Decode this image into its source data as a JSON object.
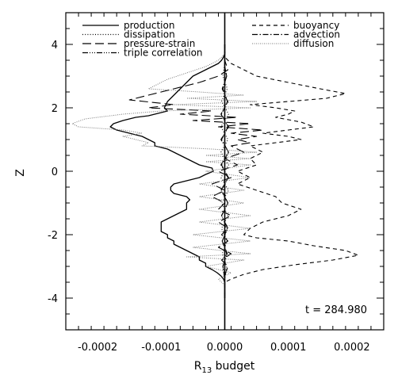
{
  "chart_data": {
    "type": "line",
    "title": "",
    "xlabel": "R",
    "xlabel_sub": "13",
    "xlabel_suffix": " budget",
    "ylabel": "Z",
    "xlim": [
      -0.00025,
      0.00025
    ],
    "ylim": [
      -5,
      5
    ],
    "x_ticks": [
      -0.0002,
      -0.0001,
      0.0,
      0.0001,
      0.0002
    ],
    "x_tick_labels": [
      "-0.0002",
      "-0.0001",
      "0.0000",
      "0.0001",
      "0.0002"
    ],
    "y_ticks": [
      -4,
      -2,
      0,
      2,
      4
    ],
    "y_tick_labels": [
      "-4",
      "-2",
      "0",
      "2",
      "4"
    ],
    "grid": false,
    "legend_placement": "top (two columns)",
    "annotation": "t = 284.980",
    "series": [
      {
        "name": "production",
        "style": "solid",
        "color": "#000000",
        "points": [
          [
            0.0,
            4.0
          ],
          [
            0.0,
            3.7
          ],
          [
            -2e-06,
            3.6
          ],
          [
            -5e-06,
            3.5
          ],
          [
            -1e-05,
            3.4
          ],
          [
            -2e-05,
            3.3
          ],
          [
            -3e-05,
            3.2
          ],
          [
            -4e-05,
            3.1
          ],
          [
            -5e-05,
            3.0
          ],
          [
            -6e-05,
            2.8
          ],
          [
            -7e-05,
            2.6
          ],
          [
            -8e-05,
            2.4
          ],
          [
            -9e-05,
            2.2
          ],
          [
            -9.5e-05,
            2.0
          ],
          [
            -9e-05,
            1.9
          ],
          [
            -0.0001,
            1.85
          ],
          [
            -0.00012,
            1.75
          ],
          [
            -0.00014,
            1.7
          ],
          [
            -0.00016,
            1.6
          ],
          [
            -0.000175,
            1.5
          ],
          [
            -0.00018,
            1.4
          ],
          [
            -0.00017,
            1.3
          ],
          [
            -0.00015,
            1.2
          ],
          [
            -0.00013,
            1.1
          ],
          [
            -0.00012,
            1.0
          ],
          [
            -0.00011,
            0.9
          ],
          [
            -0.00011,
            0.8
          ],
          [
            -9e-05,
            0.7
          ],
          [
            -8e-05,
            0.6
          ],
          [
            -7e-05,
            0.5
          ],
          [
            -6e-05,
            0.4
          ],
          [
            -5e-05,
            0.3
          ],
          [
            -4e-05,
            0.2
          ],
          [
            -2e-05,
            0.1
          ],
          [
            -1.8e-05,
            0.0
          ],
          [
            -3e-05,
            -0.1
          ],
          [
            -4e-05,
            -0.2
          ],
          [
            -6e-05,
            -0.3
          ],
          [
            -8e-05,
            -0.4
          ],
          [
            -8.5e-05,
            -0.5
          ],
          [
            -8.5e-05,
            -0.6
          ],
          [
            -8e-05,
            -0.7
          ],
          [
            -6e-05,
            -0.8
          ],
          [
            -5.5e-05,
            -0.9
          ],
          [
            -6e-05,
            -1.0
          ],
          [
            -6e-05,
            -1.1
          ],
          [
            -6e-05,
            -1.2
          ],
          [
            -7e-05,
            -1.3
          ],
          [
            -8e-05,
            -1.4
          ],
          [
            -9e-05,
            -1.5
          ],
          [
            -0.0001,
            -1.6
          ],
          [
            -0.0001,
            -1.7
          ],
          [
            -0.0001,
            -1.8
          ],
          [
            -0.0001,
            -1.9
          ],
          [
            -9e-05,
            -2.0
          ],
          [
            -9e-05,
            -2.1
          ],
          [
            -8e-05,
            -2.2
          ],
          [
            -8e-05,
            -2.3
          ],
          [
            -7e-05,
            -2.4
          ],
          [
            -6e-05,
            -2.5
          ],
          [
            -5e-05,
            -2.6
          ],
          [
            -4e-05,
            -2.7
          ],
          [
            -4e-05,
            -2.8
          ],
          [
            -3e-05,
            -2.9
          ],
          [
            -3e-05,
            -3.0
          ],
          [
            -2e-05,
            -3.1
          ],
          [
            -1.2e-05,
            -3.2
          ],
          [
            -6e-06,
            -3.3
          ],
          [
            -2e-06,
            -3.4
          ],
          [
            0.0,
            -3.5
          ],
          [
            0.0,
            -4.0
          ]
        ]
      },
      {
        "name": "dissipation",
        "style": "dotted",
        "color": "#000000",
        "points": [
          [
            0.0,
            4.0
          ],
          [
            0.0,
            3.4
          ],
          [
            -3e-06,
            3.0
          ],
          [
            4e-06,
            2.6
          ],
          [
            -5e-06,
            2.2
          ],
          [
            6e-06,
            1.8
          ],
          [
            -6e-06,
            1.4
          ],
          [
            5e-06,
            1.0
          ],
          [
            -6e-06,
            0.6
          ],
          [
            6e-06,
            0.2
          ],
          [
            -6e-06,
            -0.2
          ],
          [
            6e-06,
            -0.6
          ],
          [
            -5e-06,
            -1.0
          ],
          [
            5e-06,
            -1.4
          ],
          [
            -5e-06,
            -1.8
          ],
          [
            4e-06,
            -2.2
          ],
          [
            -4e-06,
            -2.6
          ],
          [
            3e-06,
            -3.0
          ],
          [
            0.0,
            -3.4
          ],
          [
            0.0,
            -4.0
          ]
        ]
      },
      {
        "name": "pressure-strain",
        "style": "longdash",
        "color": "#000000",
        "points": [
          [
            0.0,
            4.0
          ],
          [
            0.0,
            3.5
          ],
          [
            5e-06,
            3.2
          ],
          [
            -1e-05,
            3.0
          ],
          [
            -4e-05,
            2.8
          ],
          [
            -8e-05,
            2.6
          ],
          [
            -0.00012,
            2.4
          ],
          [
            -0.00015,
            2.25
          ],
          [
            -8e-05,
            2.1
          ],
          [
            -0.00012,
            2.0
          ],
          [
            -2e-05,
            1.9
          ],
          [
            -7e-05,
            1.8
          ],
          [
            2e-05,
            1.7
          ],
          [
            -5e-05,
            1.6
          ],
          [
            4e-05,
            1.5
          ],
          [
            -1e-05,
            1.4
          ],
          [
            6e-05,
            1.3
          ],
          [
            1e-05,
            1.2
          ],
          [
            5e-05,
            1.1
          ],
          [
            2e-05,
            1.0
          ],
          [
            4e-05,
            0.9
          ],
          [
            1e-05,
            0.8
          ],
          [
            3e-05,
            0.6
          ],
          [
            0.0,
            0.4
          ],
          [
            2e-05,
            0.2
          ],
          [
            -1e-05,
            0.0
          ],
          [
            1e-05,
            -0.2
          ],
          [
            -2e-05,
            -0.4
          ],
          [
            0.0,
            -0.6
          ],
          [
            -2e-05,
            -0.8
          ],
          [
            0.0,
            -1.0
          ],
          [
            -1e-05,
            -1.2
          ],
          [
            1e-05,
            -1.4
          ],
          [
            -1e-05,
            -1.6
          ],
          [
            5e-06,
            -1.8
          ],
          [
            -5e-06,
            -2.0
          ],
          [
            5e-06,
            -2.2
          ],
          [
            -1e-05,
            -2.4
          ],
          [
            1e-05,
            -2.6
          ],
          [
            -5e-06,
            -2.8
          ],
          [
            5e-06,
            -3.0
          ],
          [
            0.0,
            -3.3
          ],
          [
            0.0,
            -4.0
          ]
        ]
      },
      {
        "name": "triple correlation",
        "style": "dashdotdotdot",
        "color": "#000000",
        "points": [
          [
            0.0,
            4.0
          ],
          [
            0.0,
            3.3
          ],
          [
            3e-06,
            3.0
          ],
          [
            -4e-06,
            2.6
          ],
          [
            5e-06,
            2.2
          ],
          [
            -6e-06,
            1.8
          ],
          [
            6e-06,
            1.4
          ],
          [
            -6e-06,
            1.0
          ],
          [
            6e-06,
            0.6
          ],
          [
            -6e-06,
            0.2
          ],
          [
            6e-06,
            -0.2
          ],
          [
            -6e-06,
            -0.6
          ],
          [
            5e-06,
            -1.0
          ],
          [
            -5e-06,
            -1.4
          ],
          [
            5e-06,
            -1.8
          ],
          [
            -4e-06,
            -2.2
          ],
          [
            4e-06,
            -2.6
          ],
          [
            -3e-06,
            -3.0
          ],
          [
            0.0,
            -3.4
          ],
          [
            0.0,
            -4.0
          ]
        ]
      },
      {
        "name": "buoyancy",
        "style": "dashed",
        "color": "#000000",
        "points": [
          [
            0.0,
            4.0
          ],
          [
            0.0,
            3.6
          ],
          [
            1e-05,
            3.4
          ],
          [
            3e-05,
            3.2
          ],
          [
            5e-05,
            3.0
          ],
          [
            0.0001,
            2.8
          ],
          [
            0.00015,
            2.6
          ],
          [
            0.00019,
            2.45
          ],
          [
            0.00016,
            2.3
          ],
          [
            0.0001,
            2.2
          ],
          [
            4e-05,
            2.1
          ],
          [
            8e-05,
            2.0
          ],
          [
            0.00011,
            1.9
          ],
          [
            0.0001,
            1.8
          ],
          [
            8e-05,
            1.7
          ],
          [
            0.00012,
            1.55
          ],
          [
            0.00014,
            1.4
          ],
          [
            0.0001,
            1.3
          ],
          [
            6e-05,
            1.2
          ],
          [
            0.0001,
            1.1
          ],
          [
            0.00012,
            1.0
          ],
          [
            8e-05,
            0.9
          ],
          [
            4e-05,
            0.8
          ],
          [
            6e-05,
            0.6
          ],
          [
            4e-05,
            0.4
          ],
          [
            5e-05,
            0.2
          ],
          [
            2e-05,
            0.0
          ],
          [
            4e-05,
            -0.2
          ],
          [
            2e-05,
            -0.4
          ],
          [
            5e-05,
            -0.6
          ],
          [
            8e-05,
            -0.8
          ],
          [
            9e-05,
            -1.0
          ],
          [
            0.00012,
            -1.2
          ],
          [
            0.0001,
            -1.4
          ],
          [
            6e-05,
            -1.6
          ],
          [
            4e-05,
            -1.8
          ],
          [
            3e-05,
            -2.0
          ],
          [
            5e-05,
            -2.1
          ],
          [
            0.0001,
            -2.2
          ],
          [
            0.00014,
            -2.35
          ],
          [
            0.00019,
            -2.5
          ],
          [
            0.00021,
            -2.65
          ],
          [
            0.00017,
            -2.8
          ],
          [
            0.00011,
            -2.95
          ],
          [
            6e-05,
            -3.1
          ],
          [
            3e-05,
            -3.25
          ],
          [
            1e-05,
            -3.4
          ],
          [
            0.0,
            -3.5
          ],
          [
            0.0,
            -4.0
          ]
        ]
      },
      {
        "name": "advection",
        "style": "dashdot",
        "color": "#000000",
        "points": [
          [
            0.0,
            4.0
          ],
          [
            0.0,
            3.3
          ],
          [
            3e-06,
            3.0
          ],
          [
            -3e-06,
            2.6
          ],
          [
            4e-06,
            2.2
          ],
          [
            -5e-06,
            1.8
          ],
          [
            5e-06,
            1.4
          ],
          [
            -5e-06,
            1.0
          ],
          [
            6e-06,
            0.6
          ],
          [
            -5e-06,
            0.2
          ],
          [
            5e-06,
            -0.2
          ],
          [
            -5e-06,
            -0.6
          ],
          [
            5e-06,
            -1.0
          ],
          [
            -5e-06,
            -1.4
          ],
          [
            4e-06,
            -1.8
          ],
          [
            -4e-06,
            -2.2
          ],
          [
            3e-06,
            -2.6
          ],
          [
            -3e-06,
            -3.0
          ],
          [
            0.0,
            -3.4
          ],
          [
            0.0,
            -4.0
          ]
        ]
      },
      {
        "name": "diffusion",
        "style": "fine-dotted",
        "color": "#777777",
        "points": [
          [
            0.0,
            4.0
          ],
          [
            0.0,
            3.7
          ],
          [
            -1e-05,
            3.5
          ],
          [
            -3e-05,
            3.3
          ],
          [
            -6e-05,
            3.1
          ],
          [
            -9e-05,
            2.9
          ],
          [
            -0.00011,
            2.7
          ],
          [
            -0.00012,
            2.6
          ],
          [
            -4e-05,
            2.5
          ],
          [
            3e-05,
            2.4
          ],
          [
            -6e-05,
            2.3
          ],
          [
            5e-05,
            2.2
          ],
          [
            -8e-05,
            2.1
          ],
          [
            4e-05,
            2.0
          ],
          [
            -0.0001,
            1.9
          ],
          [
            -0.00016,
            1.8
          ],
          [
            -0.00022,
            1.65
          ],
          [
            -0.00024,
            1.5
          ],
          [
            -0.00023,
            1.4
          ],
          [
            -0.00016,
            1.3
          ],
          [
            -0.00013,
            1.2
          ],
          [
            -0.00016,
            1.1
          ],
          [
            -0.00014,
            1.0
          ],
          [
            -0.00012,
            0.9
          ],
          [
            -0.00013,
            0.8
          ],
          [
            -2e-05,
            0.7
          ],
          [
            5e-05,
            0.6
          ],
          [
            -3e-05,
            0.5
          ],
          [
            4e-05,
            0.4
          ],
          [
            -3e-05,
            0.3
          ],
          [
            4e-05,
            0.2
          ],
          [
            -3e-05,
            0.0
          ],
          [
            4e-05,
            -0.2
          ],
          [
            -4e-05,
            -0.4
          ],
          [
            3e-05,
            -0.6
          ],
          [
            -4e-05,
            -0.8
          ],
          [
            3e-05,
            -1.0
          ],
          [
            -4e-05,
            -1.2
          ],
          [
            4e-05,
            -1.4
          ],
          [
            -4e-05,
            -1.6
          ],
          [
            4e-05,
            -1.8
          ],
          [
            -5e-05,
            -2.0
          ],
          [
            4e-05,
            -2.2
          ],
          [
            -5e-05,
            -2.4
          ],
          [
            4e-05,
            -2.6
          ],
          [
            -6e-05,
            -2.7
          ],
          [
            3e-05,
            -2.8
          ],
          [
            -3e-05,
            -3.0
          ],
          [
            1e-05,
            -3.2
          ],
          [
            -1e-05,
            -3.4
          ],
          [
            0.0,
            -3.6
          ],
          [
            0.0,
            -4.0
          ]
        ]
      }
    ]
  }
}
